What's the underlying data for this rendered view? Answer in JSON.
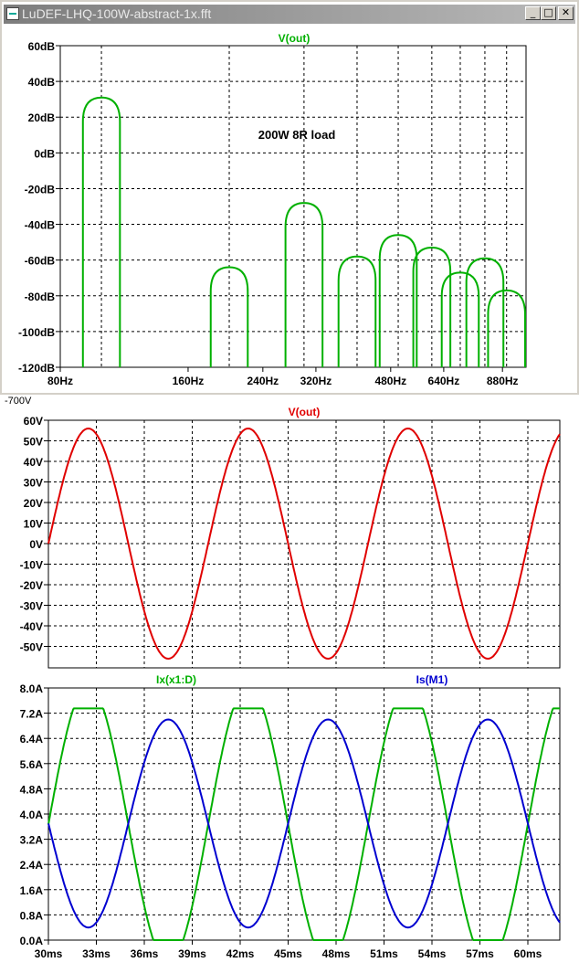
{
  "window": {
    "title": "LuDEF-LHQ-100W-abstract-1x.fft"
  },
  "buttons": {
    "minimize": "_",
    "maximize": "□",
    "close": "✕"
  },
  "colors": {
    "green": "#00b000",
    "red": "#e00000",
    "blue": "#0000d0"
  },
  "fft": {
    "trace_label": "V(out)",
    "annotation": "200W 8R load",
    "y_ticks": [
      "60dB",
      "40dB",
      "20dB",
      "0dB",
      "-20dB",
      "-40dB",
      "-60dB",
      "-80dB",
      "-100dB",
      "-120dB"
    ],
    "x_ticks": [
      "80Hz",
      "160Hz",
      "240Hz",
      "320Hz",
      "480Hz",
      "640Hz",
      "880Hz"
    ]
  },
  "vout": {
    "trace_label": "V(out)",
    "clipped_label": "-700V",
    "y_ticks": [
      "60V",
      "50V",
      "40V",
      "30V",
      "20V",
      "10V",
      "0V",
      "-10V",
      "-20V",
      "-30V",
      "-40V",
      "-50V"
    ]
  },
  "currents": {
    "trace1_label": "Ix(x1:D)",
    "trace2_label": "Is(M1)",
    "y_ticks": [
      "8.0A",
      "7.2A",
      "6.4A",
      "5.6A",
      "4.8A",
      "4.0A",
      "3.2A",
      "2.4A",
      "1.6A",
      "0.8A",
      "0.0A"
    ],
    "x_ticks": [
      "30ms",
      "33ms",
      "36ms",
      "39ms",
      "42ms",
      "45ms",
      "48ms",
      "51ms",
      "54ms",
      "57ms",
      "60ms"
    ]
  },
  "chart_data": [
    {
      "type": "line",
      "title": "V(out)",
      "annotation": "200W 8R load",
      "xlabel": "",
      "ylabel": "",
      "x_scale": "log",
      "ylim": [
        -120,
        60
      ],
      "xlim": [
        80,
        1000
      ],
      "series": [
        {
          "name": "V(out)",
          "peaks": [
            {
              "f": 100,
              "db": 31
            },
            {
              "f": 200,
              "db": -64
            },
            {
              "f": 300,
              "db": -28
            },
            {
              "f": 400,
              "db": -58
            },
            {
              "f": 500,
              "db": -46
            },
            {
              "f": 600,
              "db": -53
            },
            {
              "f": 700,
              "db": -67
            },
            {
              "f": 800,
              "db": -59
            },
            {
              "f": 900,
              "db": -77
            }
          ]
        }
      ]
    },
    {
      "type": "line",
      "title": "V(out)",
      "xlabel": "",
      "ylabel": "",
      "xlim": [
        30,
        62
      ],
      "ylim": [
        -60,
        60
      ],
      "series": [
        {
          "name": "V(out)",
          "amplitude": 56,
          "frequency_hz": 100,
          "phase_zero_at_ms": 30
        }
      ]
    },
    {
      "type": "line",
      "xlabel": "",
      "ylabel": "",
      "xlim": [
        30,
        62
      ],
      "ylim": [
        0,
        8
      ],
      "series": [
        {
          "name": "Ix(x1:D)",
          "peak": 7.35,
          "min": 0.0,
          "max_at_ms": 32.5
        },
        {
          "name": "Is(M1)",
          "peak": 7.0,
          "min": 0.4,
          "max_at_ms": 37.5
        }
      ]
    }
  ]
}
